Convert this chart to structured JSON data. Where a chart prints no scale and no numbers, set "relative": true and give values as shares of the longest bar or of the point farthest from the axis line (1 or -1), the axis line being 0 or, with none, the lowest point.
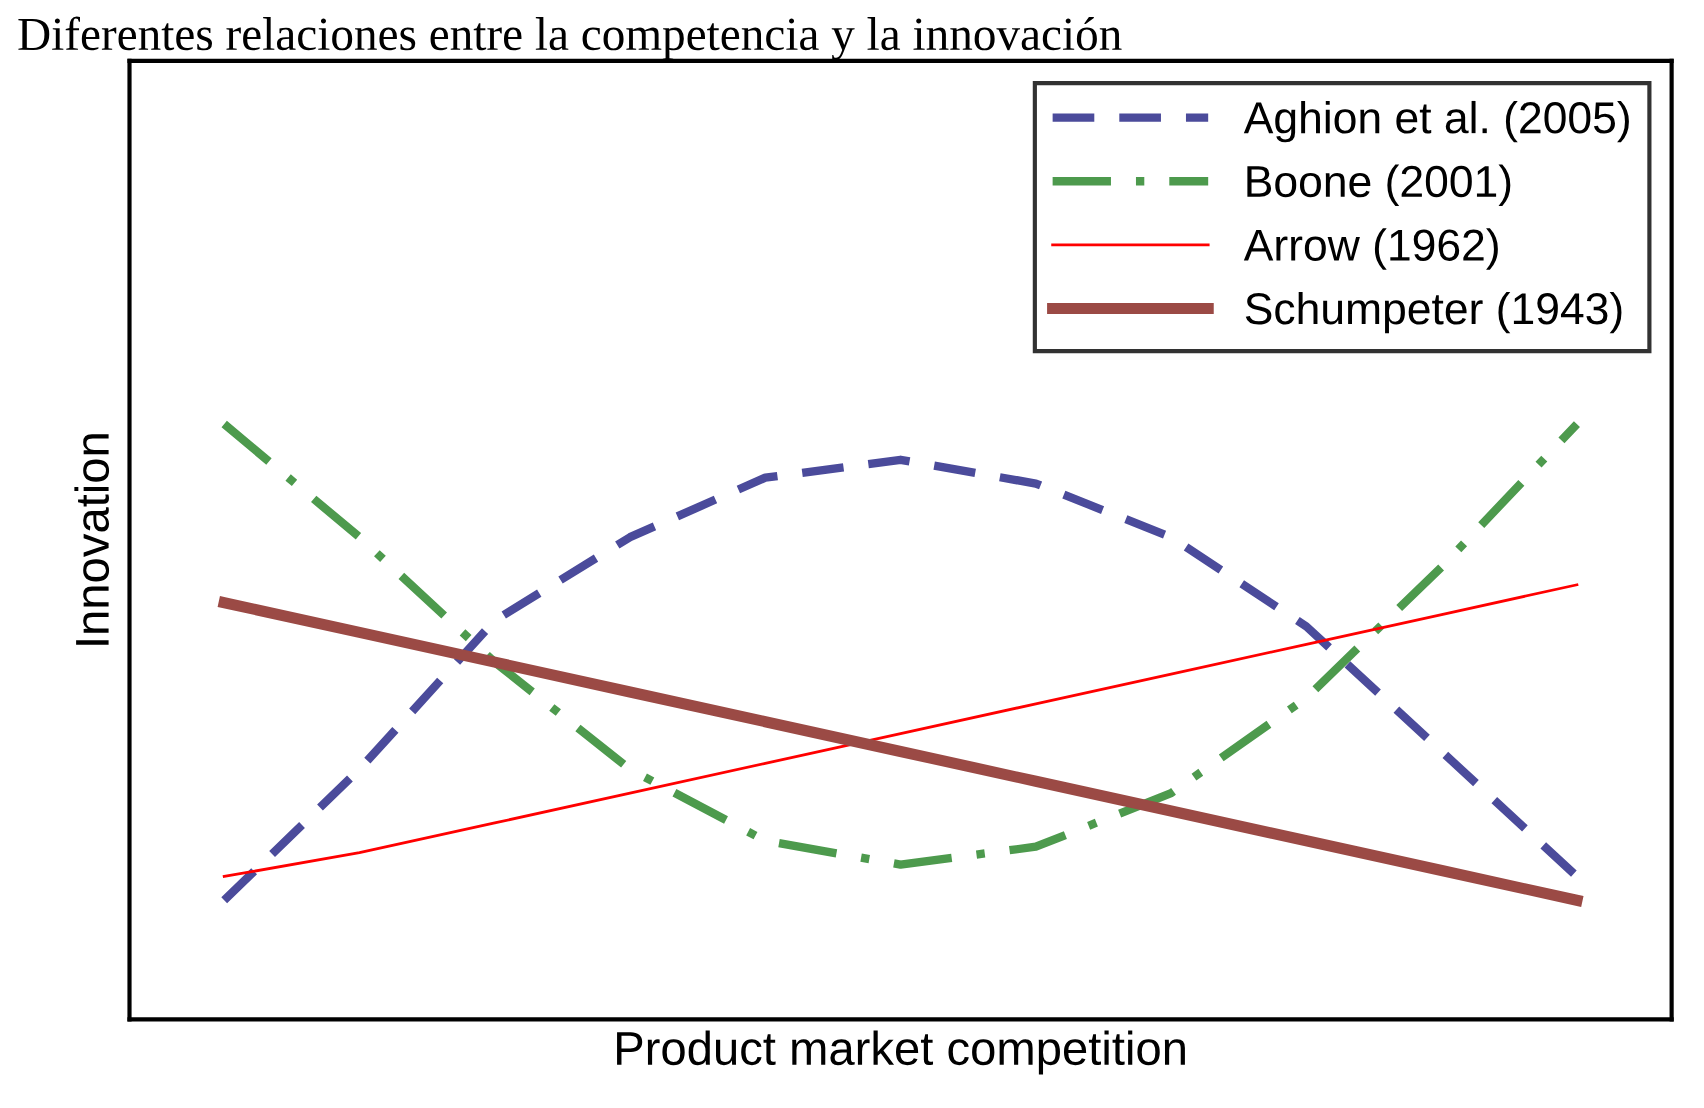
{
  "chart_data": {
    "type": "line",
    "title": "Diferentes relaciones entre la competencia y la innovación",
    "xlabel": "Product market competition",
    "ylabel": "Innovation",
    "relative": true,
    "categories": [
      null,
      null,
      null,
      null,
      null,
      null,
      null,
      null,
      null,
      null,
      null
    ],
    "legend": "top right",
    "series": [
      {
        "name": "Aghion et al. (2005)",
        "color": "#4b4b9b",
        "line_style": "dashed",
        "values": [
          0.2,
          0.42,
          0.67,
          0.81,
          0.91,
          0.94,
          0.9,
          0.81,
          0.66,
          0.45,
          0.24
        ]
      },
      {
        "name": "Boone (2001)",
        "color": "#4d9a4d",
        "line_style": "dashdot",
        "values": [
          1.0,
          0.81,
          0.6,
          0.42,
          0.3,
          0.26,
          0.29,
          0.38,
          0.54,
          0.76,
          1.0
        ]
      },
      {
        "name": "Arrow (1962)",
        "color": "#ff0000",
        "line_style": "solid",
        "values": [
          0.24,
          0.28,
          0.33,
          0.38,
          0.43,
          0.48,
          0.53,
          0.58,
          0.63,
          0.68,
          0.73
        ]
      },
      {
        "name": "Schumpeter (1943)",
        "color": "#9b4a45",
        "line_style": "solid",
        "values": [
          0.7,
          0.65,
          0.6,
          0.55,
          0.5,
          0.45,
          0.4,
          0.35,
          0.3,
          0.25,
          0.2
        ]
      }
    ]
  }
}
